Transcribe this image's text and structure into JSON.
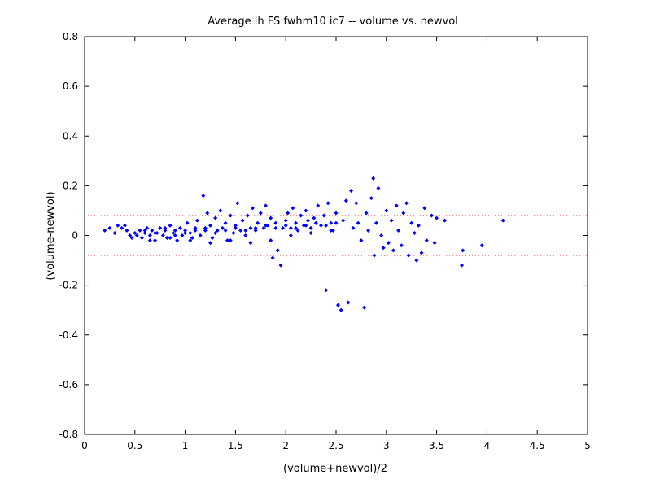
{
  "chart_data": {
    "type": "scatter",
    "title": "Average lh FS fwhm10 ic7 -- volume vs. newvol",
    "xlabel": "(volume+newvol)/2",
    "ylabel": "(volume-newvol)",
    "xlim": [
      0,
      5
    ],
    "ylim": [
      -0.8,
      0.8
    ],
    "xticks": [
      "0",
      "0.5",
      "1",
      "1.5",
      "2",
      "2.5",
      "3",
      "3.5",
      "4",
      "4.5",
      "5"
    ],
    "yticks": [
      "0.8",
      "0.6",
      "0.4",
      "0.2",
      "0",
      "-0.2",
      "-0.4",
      "-0.6",
      "-0.8"
    ],
    "grid": false,
    "marker_color": "#0000ff",
    "reference_line_color": "#ff0000",
    "reference_lines_y": [
      0.08,
      -0.08
    ],
    "series": [
      {
        "points": [
          [
            0.2,
            0.02
          ],
          [
            0.25,
            0.03
          ],
          [
            0.3,
            0.01
          ],
          [
            0.33,
            0.04
          ],
          [
            0.37,
            0.03
          ],
          [
            0.4,
            0.04
          ],
          [
            0.42,
            0.02
          ],
          [
            0.45,
            0.0
          ],
          [
            0.47,
            -0.01
          ],
          [
            0.5,
            0.01
          ],
          [
            0.52,
            0.0
          ],
          [
            0.55,
            0.02
          ],
          [
            0.57,
            -0.01
          ],
          [
            0.6,
            0.01
          ],
          [
            0.62,
            0.03
          ],
          [
            0.65,
            0.0
          ],
          [
            0.67,
            0.02
          ],
          [
            0.7,
            -0.02
          ],
          [
            0.72,
            0.01
          ],
          [
            0.75,
            0.03
          ],
          [
            0.78,
            0.0
          ],
          [
            0.8,
            0.02
          ],
          [
            0.82,
            -0.01
          ],
          [
            0.85,
            0.04
          ],
          [
            0.88,
            0.01
          ],
          [
            0.9,
            0.02
          ],
          [
            0.92,
            -0.02
          ],
          [
            0.95,
            0.03
          ],
          [
            0.97,
            0.0
          ],
          [
            1.0,
            0.02
          ],
          [
            1.02,
            0.05
          ],
          [
            1.05,
            0.01
          ],
          [
            1.07,
            -0.01
          ],
          [
            1.1,
            0.03
          ],
          [
            1.12,
            0.06
          ],
          [
            1.15,
            0.0
          ],
          [
            1.18,
            0.16
          ],
          [
            1.2,
            0.02
          ],
          [
            1.22,
            0.09
          ],
          [
            1.25,
            0.04
          ],
          [
            1.27,
            -0.01
          ],
          [
            1.3,
            0.07
          ],
          [
            1.32,
            0.02
          ],
          [
            1.35,
            0.1
          ],
          [
            1.37,
            0.03
          ],
          [
            1.4,
            0.05
          ],
          [
            1.42,
            -0.02
          ],
          [
            1.45,
            0.08
          ],
          [
            1.48,
            0.01
          ],
          [
            1.5,
            0.04
          ],
          [
            1.52,
            0.13
          ],
          [
            1.55,
            0.02
          ],
          [
            1.57,
            0.06
          ],
          [
            1.6,
            0.0
          ],
          [
            1.62,
            0.08
          ],
          [
            1.65,
            0.03
          ],
          [
            1.67,
            0.11
          ],
          [
            1.7,
            0.02
          ],
          [
            1.72,
            0.05
          ],
          [
            1.75,
            0.09
          ],
          [
            1.78,
            0.03
          ],
          [
            1.8,
            0.12
          ],
          [
            1.82,
            0.04
          ],
          [
            1.85,
            0.07
          ],
          [
            1.87,
            -0.09
          ],
          [
            1.9,
            0.05
          ],
          [
            1.92,
            -0.06
          ],
          [
            1.95,
            -0.12
          ],
          [
            1.97,
            0.03
          ],
          [
            2.0,
            0.06
          ],
          [
            2.02,
            0.09
          ],
          [
            2.05,
            0.03
          ],
          [
            2.07,
            0.11
          ],
          [
            2.1,
            0.05
          ],
          [
            2.12,
            0.02
          ],
          [
            2.15,
            0.08
          ],
          [
            2.18,
            0.04
          ],
          [
            2.2,
            0.1
          ],
          [
            2.22,
            0.06
          ],
          [
            2.25,
            0.03
          ],
          [
            2.28,
            0.07
          ],
          [
            2.3,
            0.05
          ],
          [
            2.32,
            0.12
          ],
          [
            2.35,
            0.04
          ],
          [
            2.38,
            0.08
          ],
          [
            2.4,
            -0.22
          ],
          [
            2.42,
            0.13
          ],
          [
            2.45,
            0.05
          ],
          [
            2.47,
            0.02
          ],
          [
            2.5,
            0.09
          ],
          [
            2.52,
            -0.28
          ],
          [
            2.55,
            -0.3
          ],
          [
            2.57,
            0.06
          ],
          [
            2.6,
            0.14
          ],
          [
            2.62,
            -0.27
          ],
          [
            2.65,
            0.18
          ],
          [
            2.67,
            0.03
          ],
          [
            2.7,
            0.13
          ],
          [
            2.72,
            0.05
          ],
          [
            2.75,
            -0.02
          ],
          [
            2.78,
            -0.29
          ],
          [
            2.8,
            0.09
          ],
          [
            2.82,
            0.02
          ],
          [
            2.85,
            0.15
          ],
          [
            2.87,
            0.23
          ],
          [
            2.88,
            -0.08
          ],
          [
            2.9,
            0.05
          ],
          [
            2.92,
            0.19
          ],
          [
            2.95,
            0.0
          ],
          [
            2.97,
            -0.05
          ],
          [
            3.0,
            0.1
          ],
          [
            3.02,
            -0.03
          ],
          [
            3.05,
            0.06
          ],
          [
            3.07,
            -0.06
          ],
          [
            3.1,
            0.12
          ],
          [
            3.12,
            0.02
          ],
          [
            3.15,
            -0.04
          ],
          [
            3.17,
            0.09
          ],
          [
            3.2,
            0.13
          ],
          [
            3.22,
            -0.08
          ],
          [
            3.25,
            0.05
          ],
          [
            3.28,
            0.01
          ],
          [
            3.3,
            -0.1
          ],
          [
            3.32,
            0.04
          ],
          [
            3.35,
            -0.07
          ],
          [
            3.38,
            0.11
          ],
          [
            3.4,
            -0.02
          ],
          [
            3.45,
            0.08
          ],
          [
            3.48,
            -0.03
          ],
          [
            3.5,
            0.07
          ],
          [
            3.58,
            0.06
          ],
          [
            3.75,
            -0.12
          ],
          [
            3.76,
            -0.06
          ],
          [
            3.95,
            -0.04
          ],
          [
            4.16,
            0.06
          ],
          [
            0.6,
            0.02
          ],
          [
            0.7,
            0.01
          ],
          [
            0.8,
            0.03
          ],
          [
            0.9,
            0.0
          ],
          [
            1.0,
            0.01
          ],
          [
            1.1,
            0.02
          ],
          [
            1.2,
            0.03
          ],
          [
            1.3,
            0.01
          ],
          [
            1.4,
            0.02
          ],
          [
            1.5,
            0.03
          ],
          [
            1.6,
            0.02
          ],
          [
            1.7,
            0.03
          ],
          [
            1.8,
            0.04
          ],
          [
            1.9,
            0.03
          ],
          [
            2.0,
            0.04
          ],
          [
            2.1,
            0.03
          ],
          [
            2.2,
            0.04
          ],
          [
            2.3,
            0.05
          ],
          [
            2.4,
            0.04
          ],
          [
            2.5,
            0.05
          ],
          [
            0.65,
            -0.02
          ],
          [
            0.85,
            -0.01
          ],
          [
            1.05,
            -0.02
          ],
          [
            1.25,
            -0.03
          ],
          [
            1.45,
            -0.02
          ],
          [
            1.65,
            -0.03
          ],
          [
            1.85,
            -0.02
          ],
          [
            2.05,
            0.0
          ],
          [
            2.25,
            0.01
          ],
          [
            2.45,
            0.02
          ]
        ]
      }
    ]
  }
}
